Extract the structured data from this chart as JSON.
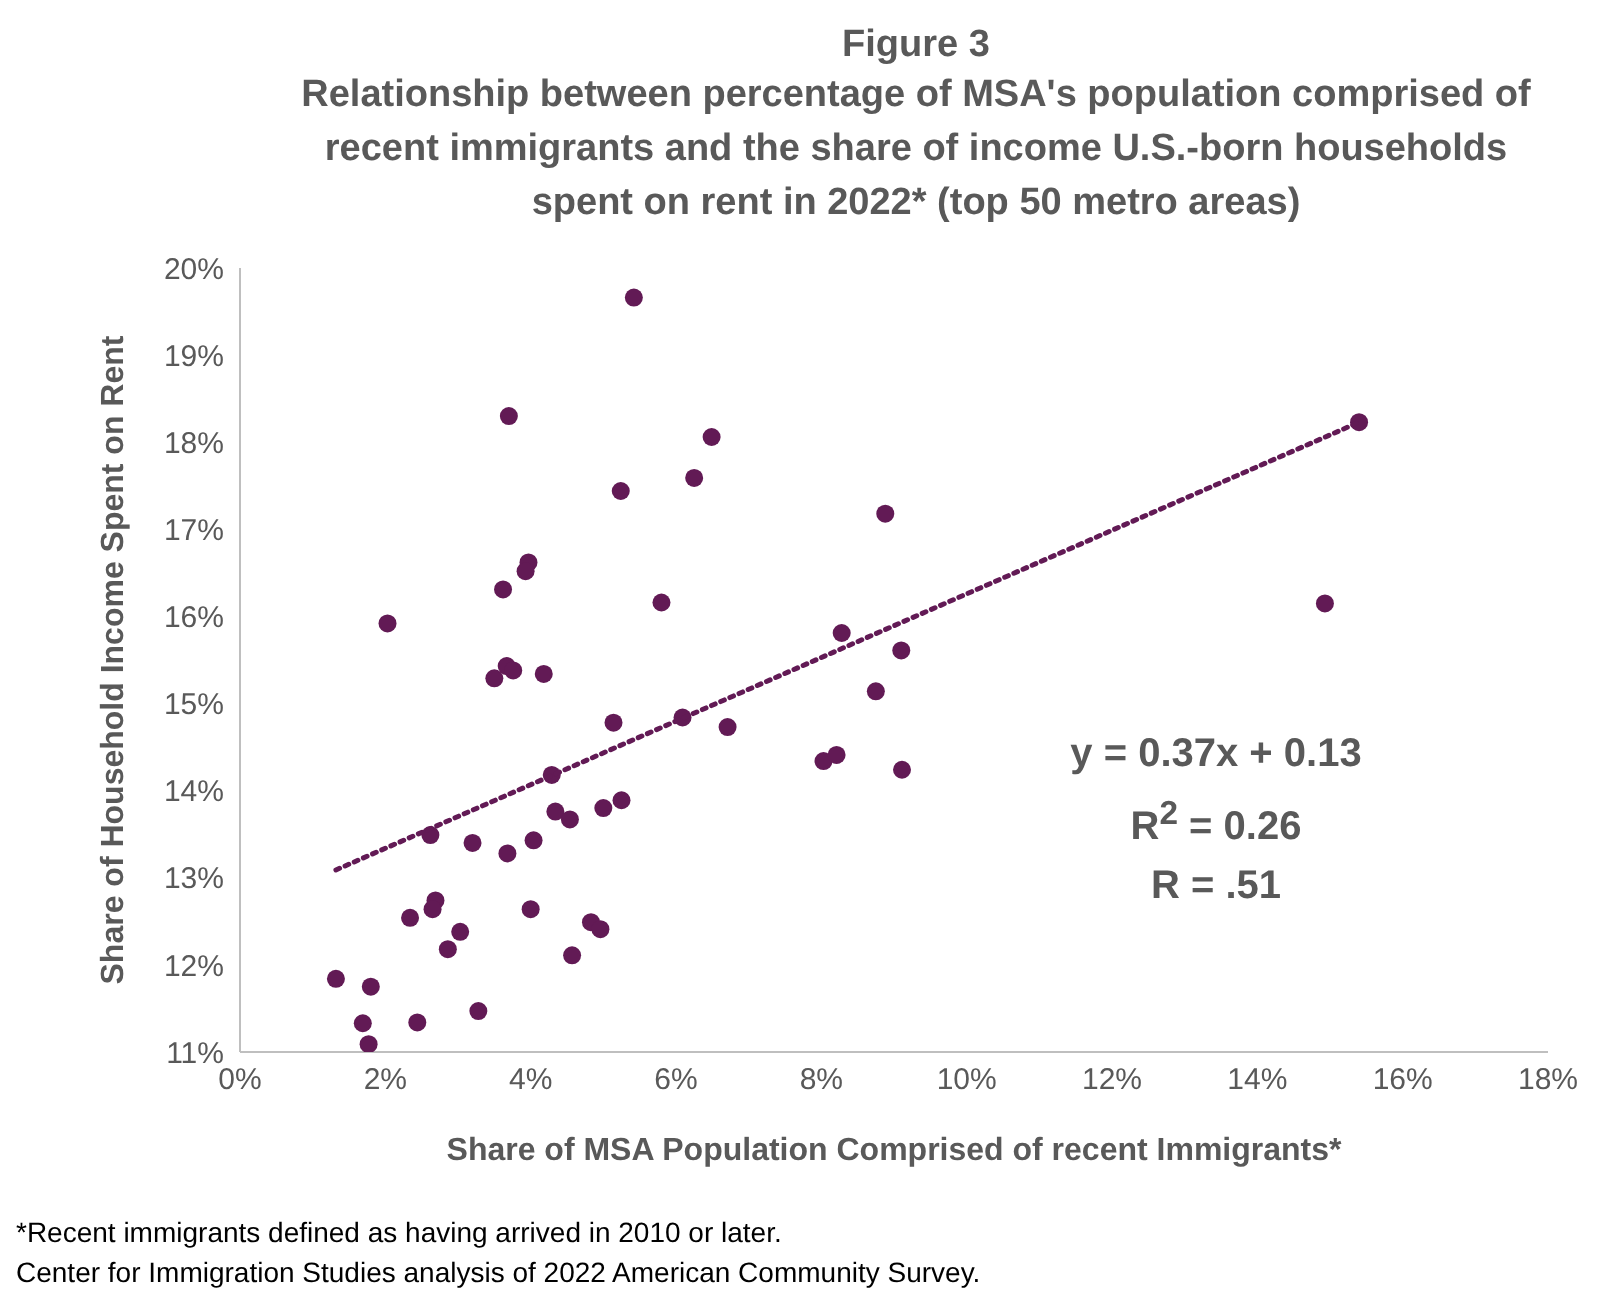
{
  "chart_data": {
    "type": "scatter",
    "title": "Figure 3",
    "subtitle": "Relationship between percentage of MSA's population comprised of recent immigrants and the share of income U.S.-born households spent on rent in 2022* (top 50 metro areas)",
    "xlabel": "Share of MSA Population Comprised of recent Immigrants*",
    "ylabel": "Share of Household Income Spent on Rent",
    "xlim": [
      0,
      18
    ],
    "xticks": [
      {
        "value": 0,
        "label": "0%"
      },
      {
        "value": 2,
        "label": "2%"
      },
      {
        "value": 4,
        "label": "4%"
      },
      {
        "value": 6,
        "label": "6%"
      },
      {
        "value": 8,
        "label": "8%"
      },
      {
        "value": 10,
        "label": "10%"
      },
      {
        "value": 12,
        "label": "12%"
      },
      {
        "value": 14,
        "label": "14%"
      },
      {
        "value": 16,
        "label": "16%"
      },
      {
        "value": 18,
        "label": "18%"
      }
    ],
    "ylim": [
      11,
      20
    ],
    "yticks": [
      {
        "value": 11,
        "label": "11%"
      },
      {
        "value": 12,
        "label": "12%"
      },
      {
        "value": 13,
        "label": "13%"
      },
      {
        "value": 14,
        "label": "14%"
      },
      {
        "value": 15,
        "label": "15%"
      },
      {
        "value": 16,
        "label": "16%"
      },
      {
        "value": 17,
        "label": "17%"
      },
      {
        "value": 18,
        "label": "18%"
      },
      {
        "value": 19,
        "label": "19%"
      },
      {
        "value": 20,
        "label": "20%"
      }
    ],
    "grid": false,
    "legend": false,
    "marker": "circle",
    "series": [
      {
        "color": "#621a55",
        "x": [
          5.42,
          3.7,
          6.49,
          6.25,
          5.24,
          3.97,
          3.93,
          3.62,
          5.8,
          2.03,
          15.4,
          8.88,
          14.93,
          8.28,
          9.1,
          3.5,
          3.67,
          3.76,
          4.18,
          5.14,
          6.09,
          6.71,
          4.29,
          4.34,
          4.54,
          5.0,
          5.25,
          2.62,
          3.2,
          3.68,
          4.04,
          2.69,
          2.65,
          2.34,
          3.03,
          2.86,
          4.0,
          4.83,
          4.96,
          4.57,
          1.32,
          1.8,
          1.69,
          1.77,
          2.44,
          3.28,
          8.75,
          8.03,
          8.21,
          9.11
        ],
        "values": [
          19.66,
          18.3,
          18.06,
          17.59,
          17.44,
          16.62,
          16.52,
          16.31,
          16.16,
          15.92,
          18.23,
          17.18,
          16.15,
          15.81,
          15.61,
          15.29,
          15.43,
          15.38,
          15.34,
          14.78,
          14.84,
          14.73,
          14.18,
          13.76,
          13.67,
          13.8,
          13.89,
          13.49,
          13.4,
          13.28,
          13.43,
          12.74,
          12.64,
          12.54,
          12.38,
          12.18,
          12.64,
          12.49,
          12.41,
          12.11,
          11.84,
          11.75,
          11.33,
          11.09,
          11.34,
          11.47,
          15.14,
          14.34,
          14.41,
          14.24
        ]
      },
      {
        "type": "line",
        "color": "#621a55",
        "line_style": "dotted",
        "marker": "none",
        "x": [
          1.32,
          15.4
        ],
        "values": [
          13.09,
          18.23
        ]
      }
    ],
    "annotations": [
      "y = 0.37x + 0.13",
      "R$^{2}$ = 0.26",
      "R = .51",
      "*Recent immigrants defined as having arrived in 2010 or later.",
      "Center for Immigration Studies analysis of 2022 American Community Survey."
    ]
  }
}
